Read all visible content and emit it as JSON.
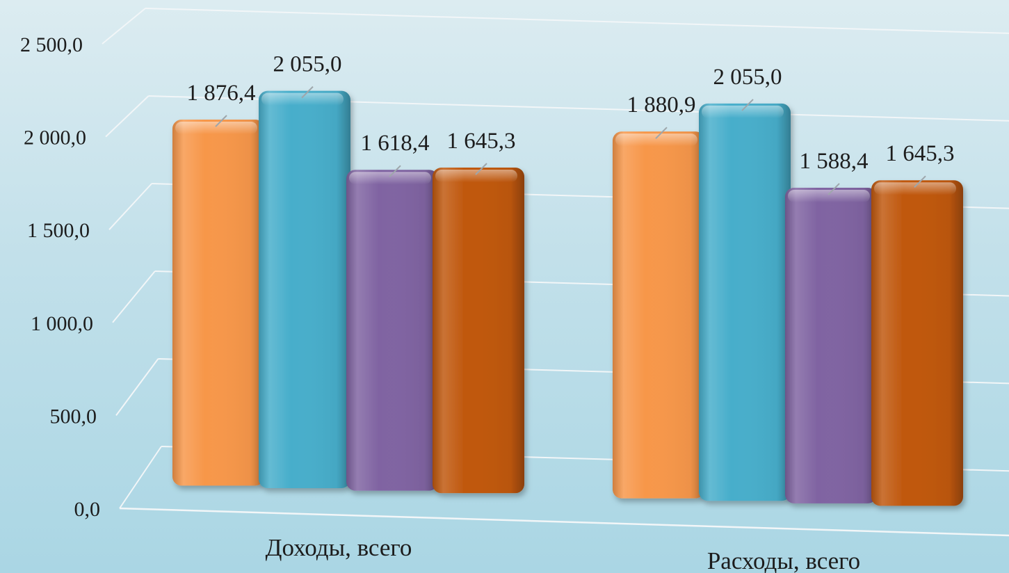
{
  "chart_data": {
    "type": "bar",
    "categories": [
      "Доходы, всего",
      "Расходы, всего"
    ],
    "series": [
      {
        "values": [
          1876.4,
          1880.9
        ],
        "color": "#f7974a"
      },
      {
        "values": [
          2055.0,
          2055.0
        ],
        "color": "#47aecb"
      },
      {
        "values": [
          1618.4,
          1588.4
        ],
        "color": "#8064a2"
      },
      {
        "values": [
          1645.3,
          1645.3
        ],
        "color": "#c0580e"
      }
    ],
    "data_labels": [
      [
        "1 876,4",
        "2 055,0",
        "1 618,4",
        "1 645,3"
      ],
      [
        "1 880,9",
        "2 055,0",
        "1 588,4",
        "1 645,3"
      ]
    ],
    "y_ticks": [
      "0,0",
      "500,0",
      "1 000,0",
      "1 500,0",
      "2 000,0",
      "2 500,0"
    ],
    "ylim": [
      0,
      2500
    ],
    "grid": true,
    "legend": "none",
    "title": "",
    "xlabel": "",
    "ylabel": ""
  }
}
